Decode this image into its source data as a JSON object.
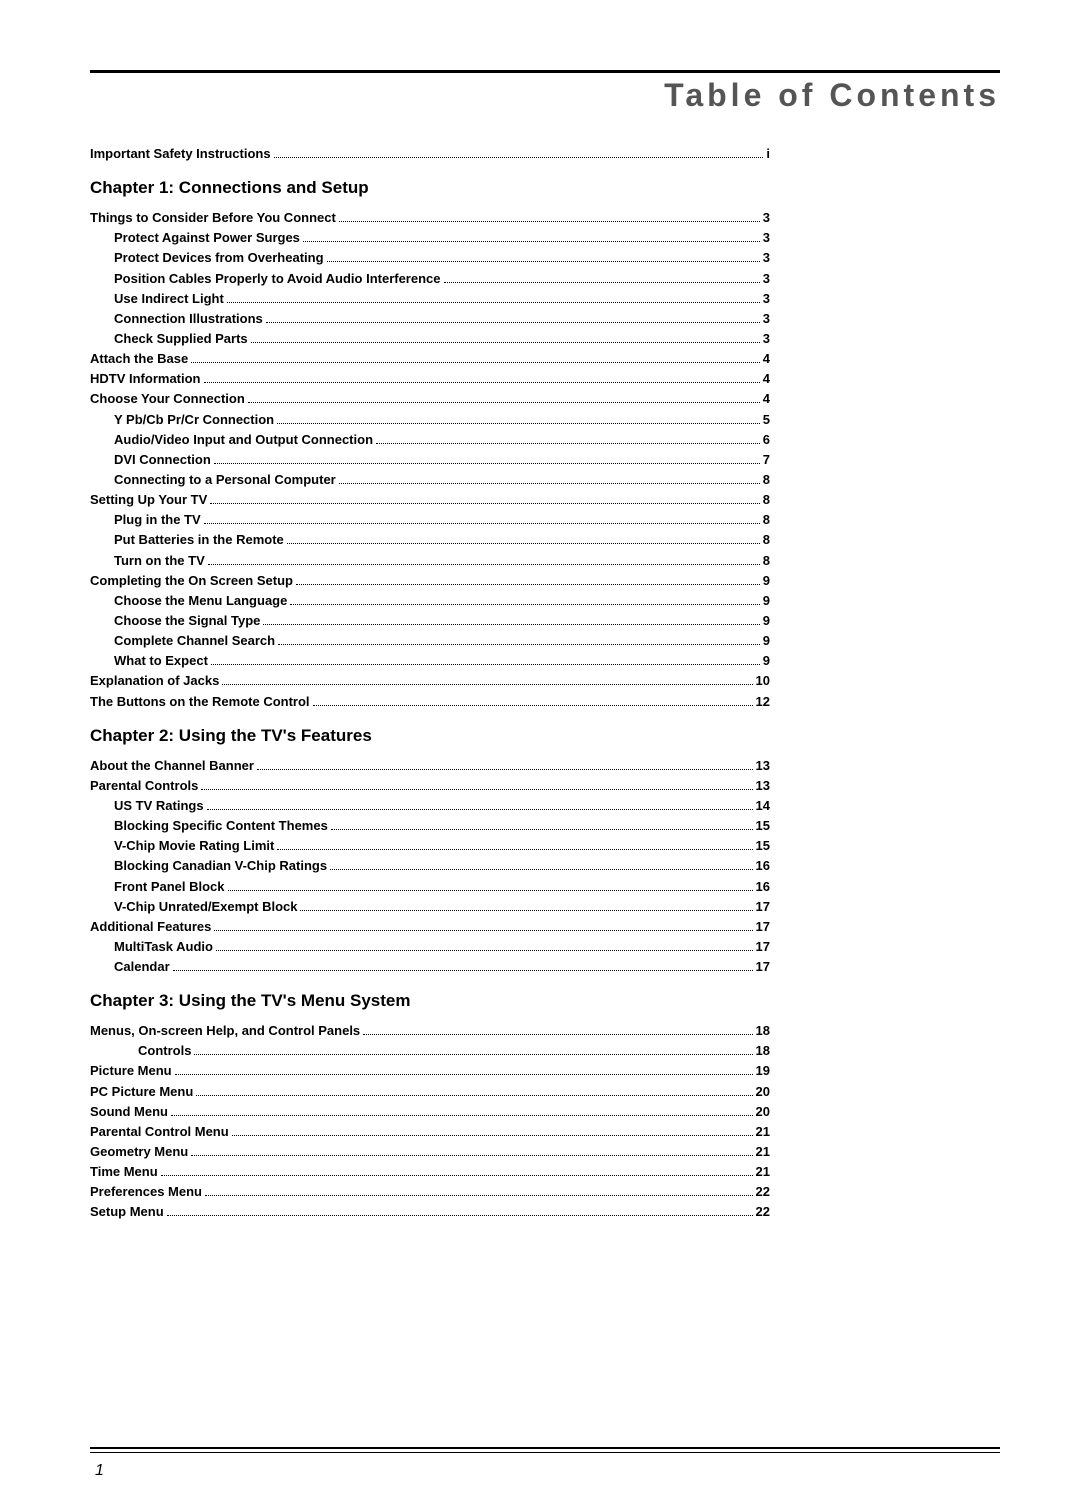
{
  "page_title": "Table of Contents",
  "page_number": "1",
  "sections": [
    {
      "heading": null,
      "items": [
        {
          "label": "Important Safety Instructions",
          "page": "i",
          "indent": 0
        }
      ]
    },
    {
      "heading": "Chapter 1: Connections and Setup",
      "items": [
        {
          "label": "Things to Consider Before You Connect",
          "page": "3",
          "indent": 0
        },
        {
          "label": "Protect Against Power Surges",
          "page": "3",
          "indent": 1
        },
        {
          "label": "Protect Devices from Overheating",
          "page": "3",
          "indent": 1
        },
        {
          "label": "Position Cables Properly to Avoid Audio Interference",
          "page": "3",
          "indent": 1
        },
        {
          "label": "Use Indirect Light",
          "page": "3",
          "indent": 1
        },
        {
          "label": "Connection Illustrations",
          "page": "3",
          "indent": 1
        },
        {
          "label": "Check Supplied Parts",
          "page": "3",
          "indent": 1
        },
        {
          "label": "Attach the Base",
          "page": "4",
          "indent": 0
        },
        {
          "label": "HDTV Information",
          "page": "4",
          "indent": 0
        },
        {
          "label": "Choose Your Connection",
          "page": "4",
          "indent": 0
        },
        {
          "label": "Y Pb/Cb Pr/Cr Connection ",
          "page": "5",
          "indent": 1
        },
        {
          "label": "Audio/Video Input and Output Connection",
          "page": "6",
          "indent": 1
        },
        {
          "label": "DVI Connection",
          "page": "7",
          "indent": 1
        },
        {
          "label": "Connecting to a Personal Computer",
          "page": "8",
          "indent": 1
        },
        {
          "label": "Setting Up Your TV",
          "page": "8",
          "indent": 0
        },
        {
          "label": "Plug in the TV",
          "page": "8",
          "indent": 1
        },
        {
          "label": "Put Batteries in the Remote",
          "page": "8",
          "indent": 1
        },
        {
          "label": "Turn on the TV",
          "page": "8",
          "indent": 1
        },
        {
          "label": "Completing the On Screen Setup",
          "page": "9",
          "indent": 0
        },
        {
          "label": "Choose the Menu Language",
          "page": "9",
          "indent": 1
        },
        {
          "label": "Choose the Signal Type",
          "page": "9",
          "indent": 1
        },
        {
          "label": "Complete Channel Search",
          "page": "9",
          "indent": 1
        },
        {
          "label": "What to Expect",
          "page": "9",
          "indent": 1
        },
        {
          "label": "Explanation of Jacks",
          "page": "10",
          "indent": 0
        },
        {
          "label": "The Buttons on the Remote Control",
          "page": "12",
          "indent": 0
        }
      ]
    },
    {
      "heading": "Chapter 2: Using the TV's Features",
      "items": [
        {
          "label": "About the Channel Banner",
          "page": "13",
          "indent": 0
        },
        {
          "label": "Parental Controls",
          "page": "13",
          "indent": 0
        },
        {
          "label": "US TV Ratings",
          "page": "14",
          "indent": 1
        },
        {
          "label": "Blocking Specific Content Themes",
          "page": "15",
          "indent": 1
        },
        {
          "label": "V-Chip Movie Rating Limit",
          "page": "15",
          "indent": 1
        },
        {
          "label": "Blocking Canadian V-Chip Ratings",
          "page": "16",
          "indent": 1
        },
        {
          "label": "Front Panel Block",
          "page": "16",
          "indent": 1
        },
        {
          "label": "V-Chip Unrated/Exempt Block",
          "page": "17",
          "indent": 1
        },
        {
          "label": "Additional Features",
          "page": "17",
          "indent": 0
        },
        {
          "label": "MultiTask Audio",
          "page": "17",
          "indent": 1
        },
        {
          "label": "Calendar",
          "page": "17",
          "indent": 1
        }
      ]
    },
    {
      "heading": "Chapter 3: Using the TV's Menu System",
      "items": [
        {
          "label": "Menus, On-screen Help, and Control Panels",
          "page": "18",
          "indent": 0
        },
        {
          "label": "Controls",
          "page": "18",
          "indent": 2
        },
        {
          "label": "Picture Menu",
          "page": "19",
          "indent": 0
        },
        {
          "label": "PC Picture Menu",
          "page": "20",
          "indent": 0
        },
        {
          "label": "Sound Menu",
          "page": "20",
          "indent": 0
        },
        {
          "label": "Parental Control Menu",
          "page": "21",
          "indent": 0
        },
        {
          "label": "Geometry Menu",
          "page": "21",
          "indent": 0
        },
        {
          "label": "Time Menu",
          "page": "21",
          "indent": 0
        },
        {
          "label": "Preferences Menu",
          "page": "22",
          "indent": 0
        },
        {
          "label": "Setup Menu",
          "page": "22",
          "indent": 0
        }
      ]
    }
  ]
}
